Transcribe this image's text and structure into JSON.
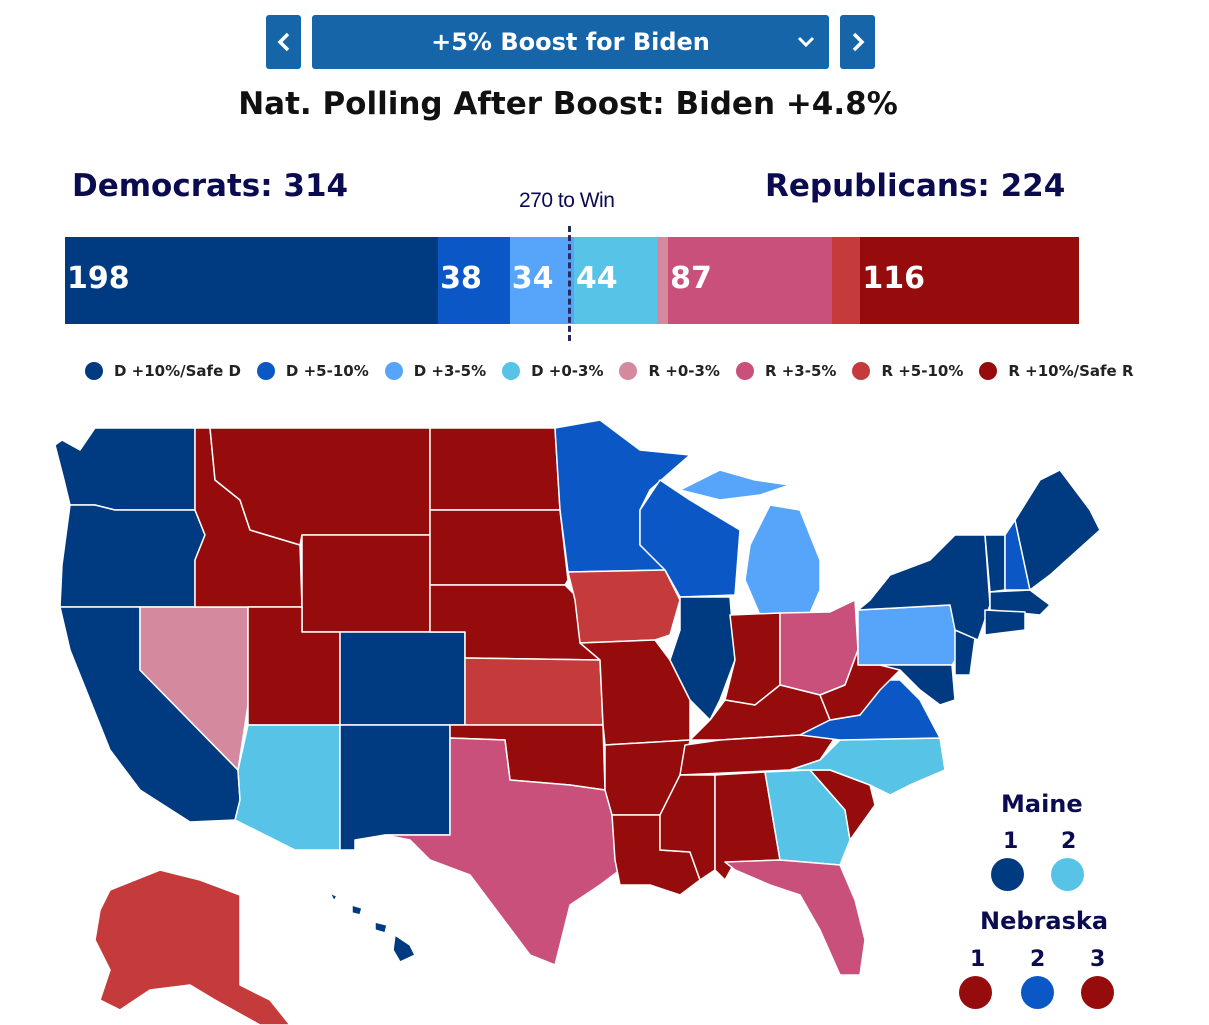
{
  "scenario": {
    "selected": "+5% Boost for Biden",
    "prev_icon": "chevron-left-icon",
    "next_icon": "chevron-right-icon"
  },
  "headline": "Nat. Polling After Boost: Biden +4.8%",
  "totals": {
    "dem_label": "Democrats: 314",
    "rep_label": "Republicans: 224",
    "threshold": "270 to Win"
  },
  "bar": [
    {
      "key": "d_safe",
      "value": 198,
      "label": "198",
      "color": "#003a80"
    },
    {
      "key": "d_5_10",
      "value": 38,
      "label": "38",
      "color": "#0b57c5"
    },
    {
      "key": "d_3_5",
      "value": 34,
      "label": "34",
      "color": "#56a5fb"
    },
    {
      "key": "d_0_3",
      "value": 44,
      "label": "44",
      "color": "#57c3e6"
    },
    {
      "key": "r_0_3",
      "value": 6,
      "label": "",
      "color": "#d4899f"
    },
    {
      "key": "r_3_5",
      "value": 87,
      "label": "87",
      "color": "#c9507b"
    },
    {
      "key": "r_5_10",
      "value": 15,
      "label": "",
      "color": "#c53b3b"
    },
    {
      "key": "r_safe",
      "value": 116,
      "label": "116",
      "color": "#960b0b"
    }
  ],
  "bar_total": 538,
  "legend": [
    {
      "label": "D +10%/Safe D",
      "color": "#003a80"
    },
    {
      "label": "D +5-10%",
      "color": "#0b57c5"
    },
    {
      "label": "D +3-5%",
      "color": "#56a5fb"
    },
    {
      "label": "D +0-3%",
      "color": "#57c3e6"
    },
    {
      "label": "R +0-3%",
      "color": "#d4899f"
    },
    {
      "label": "R +3-5%",
      "color": "#c9507b"
    },
    {
      "label": "R +5-10%",
      "color": "#c53b3b"
    },
    {
      "label": "R +10%/Safe R",
      "color": "#960b0b"
    }
  ],
  "maine": {
    "title": "Maine",
    "districts": [
      {
        "label": "1",
        "color": "#003a80"
      },
      {
        "label": "2",
        "color": "#57c3e6"
      }
    ]
  },
  "nebraska": {
    "title": "Nebraska",
    "districts": [
      {
        "label": "1",
        "color": "#960b0b"
      },
      {
        "label": "2",
        "color": "#0b57c5"
      },
      {
        "label": "3",
        "color": "#960b0b"
      }
    ]
  }
}
